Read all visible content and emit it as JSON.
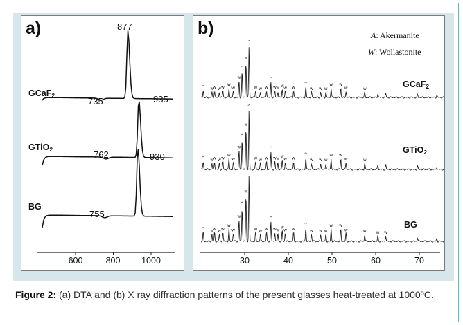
{
  "panel_a": {
    "letter": "a)",
    "traces": [
      {
        "label": "GCaF",
        "label_sub": "2",
        "peak": "877",
        "onset": "735"
      },
      {
        "label": "GTiO",
        "label_sub": "2",
        "peak": "935",
        "onset": "762"
      },
      {
        "label": "BG",
        "label_sub": "",
        "peak": "930",
        "onset": "755"
      }
    ],
    "x_ticks": [
      "600",
      "800",
      "1000"
    ]
  },
  "panel_b": {
    "letter": "b)",
    "legend": {
      "a_symbol": "A",
      "a_text": ": Akermanite",
      "w_symbol": "W",
      "w_text": ": Wollastonite"
    },
    "traces": [
      {
        "label": "GCaF",
        "label_sub": "2"
      },
      {
        "label": "GTiO",
        "label_sub": "2"
      },
      {
        "label": "BG",
        "label_sub": ""
      }
    ],
    "x_ticks": [
      "30",
      "40",
      "50",
      "60",
      "70"
    ]
  },
  "chart_data": [
    {
      "type": "line",
      "panel": "a",
      "title": "",
      "xlabel": "",
      "ylabel": "",
      "xlim": [
        400,
        1100
      ],
      "x_ticks": [
        600,
        800,
        1000
      ],
      "series": [
        {
          "name": "GCaF2",
          "onset": 735,
          "peak": 877
        },
        {
          "name": "GTiO2",
          "onset": 762,
          "peak": 935
        },
        {
          "name": "BG",
          "onset": 755,
          "peak": 930
        }
      ]
    },
    {
      "type": "line",
      "panel": "b",
      "title": "",
      "xlabel": "",
      "ylabel": "",
      "xlim": [
        20,
        77
      ],
      "x_ticks": [
        30,
        40,
        50,
        60,
        70
      ],
      "series": [
        {
          "name": "GCaF2",
          "main_peak": 31
        },
        {
          "name": "GTiO2",
          "main_peak": 31
        },
        {
          "name": "BG",
          "main_peak": 31
        }
      ],
      "phases": [
        {
          "symbol": "A",
          "name": "Akermanite"
        },
        {
          "symbol": "W",
          "name": "Wollastonite"
        }
      ]
    }
  ],
  "caption": {
    "label": "Figure 2:",
    "text": " (a) DTA and (b) X ray diffraction patterns of the present glasses heat-treated at 1000ºC."
  }
}
